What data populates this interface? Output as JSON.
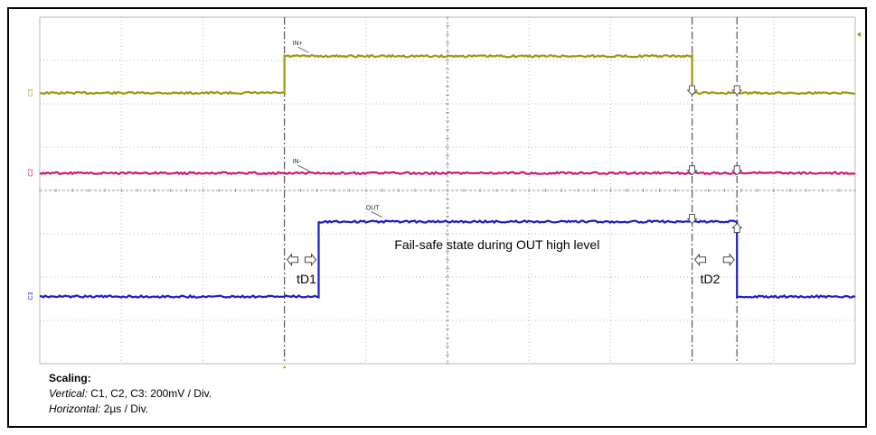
{
  "chart_data": {
    "type": "line",
    "title": "",
    "xlabel": "",
    "ylabel": "",
    "x_divisions": 10,
    "y_divisions": 8,
    "grid": true,
    "colors": {
      "C1": "#9a9a12",
      "C2": "#d0186e",
      "C3": "#1c1ccc",
      "grid": "#b8b8b8",
      "marker": "#555555"
    },
    "x_range_div": [
      0,
      10
    ],
    "y_range_div": [
      0,
      8
    ],
    "series": [
      {
        "name": "IN+",
        "channel_tag": "C1",
        "color": "#9a9a12",
        "points": [
          [
            0,
            6.25
          ],
          [
            3.0,
            6.25
          ],
          [
            3.0,
            7.1
          ],
          [
            8.0,
            7.1
          ],
          [
            8.0,
            6.25
          ],
          [
            10,
            6.25
          ]
        ]
      },
      {
        "name": "IN-",
        "channel_tag": "C2",
        "color": "#d0186e",
        "points": [
          [
            0,
            4.4
          ],
          [
            10,
            4.4
          ]
        ]
      },
      {
        "name": "OUT",
        "channel_tag": "C3",
        "color": "#1c1ccc",
        "points": [
          [
            0,
            1.55
          ],
          [
            3.42,
            1.55
          ],
          [
            3.42,
            3.28
          ],
          [
            8.55,
            3.28
          ],
          [
            8.55,
            1.55
          ],
          [
            10,
            1.55
          ]
        ]
      }
    ],
    "series_label_positions": [
      [
        3.1,
        7.35
      ],
      [
        3.1,
        4.62
      ],
      [
        4.0,
        3.55
      ]
    ],
    "markers": {
      "t_line_x": [
        3.0,
        8.0,
        8.55
      ],
      "td1": {
        "label": "tD1",
        "from": 3.0,
        "to": 3.42,
        "label_pos": [
          3.15,
          1.85
        ],
        "arrow_y": 2.4
      },
      "td2": {
        "label": "tD2",
        "from": 8.0,
        "to": 8.55,
        "label_pos": [
          8.1,
          1.85
        ],
        "arrow_y": 2.4
      }
    },
    "annotation": {
      "text": "Fail-safe state during OUT high level",
      "pos": [
        4.35,
        2.65
      ]
    }
  },
  "scaling": {
    "title": "Scaling:",
    "vertical_label": "Vertical:",
    "vertical_value": " C1, C2, C3: 200mV / Div.",
    "horizontal_label": "Horizontal:",
    "horizontal_value": " 2µs / Div."
  }
}
